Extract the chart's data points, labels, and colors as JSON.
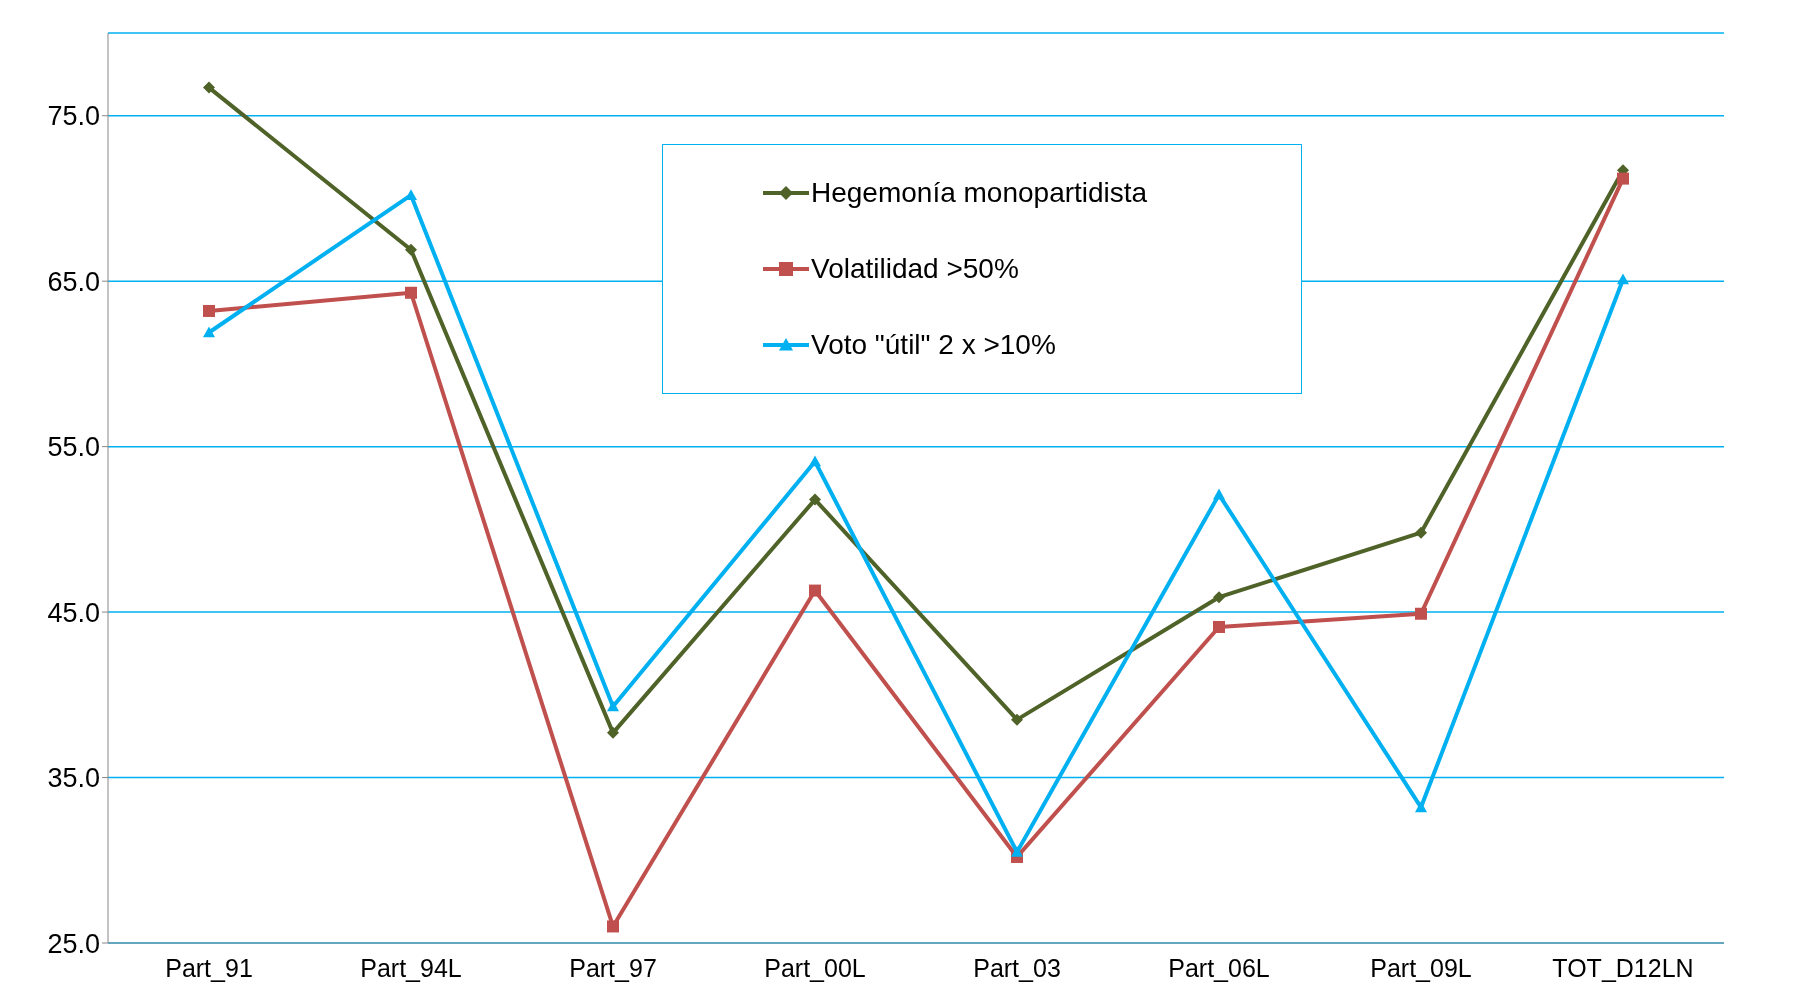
{
  "chart_data": {
    "type": "line",
    "categories": [
      "Part_91",
      "Part_94L",
      "Part_97",
      "Part_00L",
      "Part_03",
      "Part_06L",
      "Part_09L",
      "TOT_D12LN"
    ],
    "series": [
      {
        "name": "Hegemonía monopartidista",
        "color": "#4f6228",
        "marker": "diamond",
        "values": [
          76.7,
          66.9,
          37.7,
          51.8,
          38.5,
          45.9,
          49.8,
          71.7
        ]
      },
      {
        "name": "Volatilidad >50%",
        "color": "#c0504d",
        "marker": "square",
        "values": [
          63.2,
          64.3,
          26.0,
          46.3,
          30.2,
          44.1,
          44.9,
          71.2
        ]
      },
      {
        "name": "Voto \"útil\" 2 x >10%",
        "color": "#00b0f0",
        "marker": "triangle",
        "values": [
          61.9,
          70.2,
          39.3,
          54.1,
          30.5,
          52.1,
          33.2,
          65.1
        ]
      }
    ],
    "ylim": [
      25,
      80
    ],
    "yticks": [
      {
        "value": 25,
        "label": "25.0"
      },
      {
        "value": 35,
        "label": "35.0"
      },
      {
        "value": 45,
        "label": "45.0"
      },
      {
        "value": 55,
        "label": "55.0"
      },
      {
        "value": 65,
        "label": "65.0"
      },
      {
        "value": 75,
        "label": "75.0"
      }
    ],
    "grid": "y",
    "legend": "top",
    "line_style": "solid"
  }
}
